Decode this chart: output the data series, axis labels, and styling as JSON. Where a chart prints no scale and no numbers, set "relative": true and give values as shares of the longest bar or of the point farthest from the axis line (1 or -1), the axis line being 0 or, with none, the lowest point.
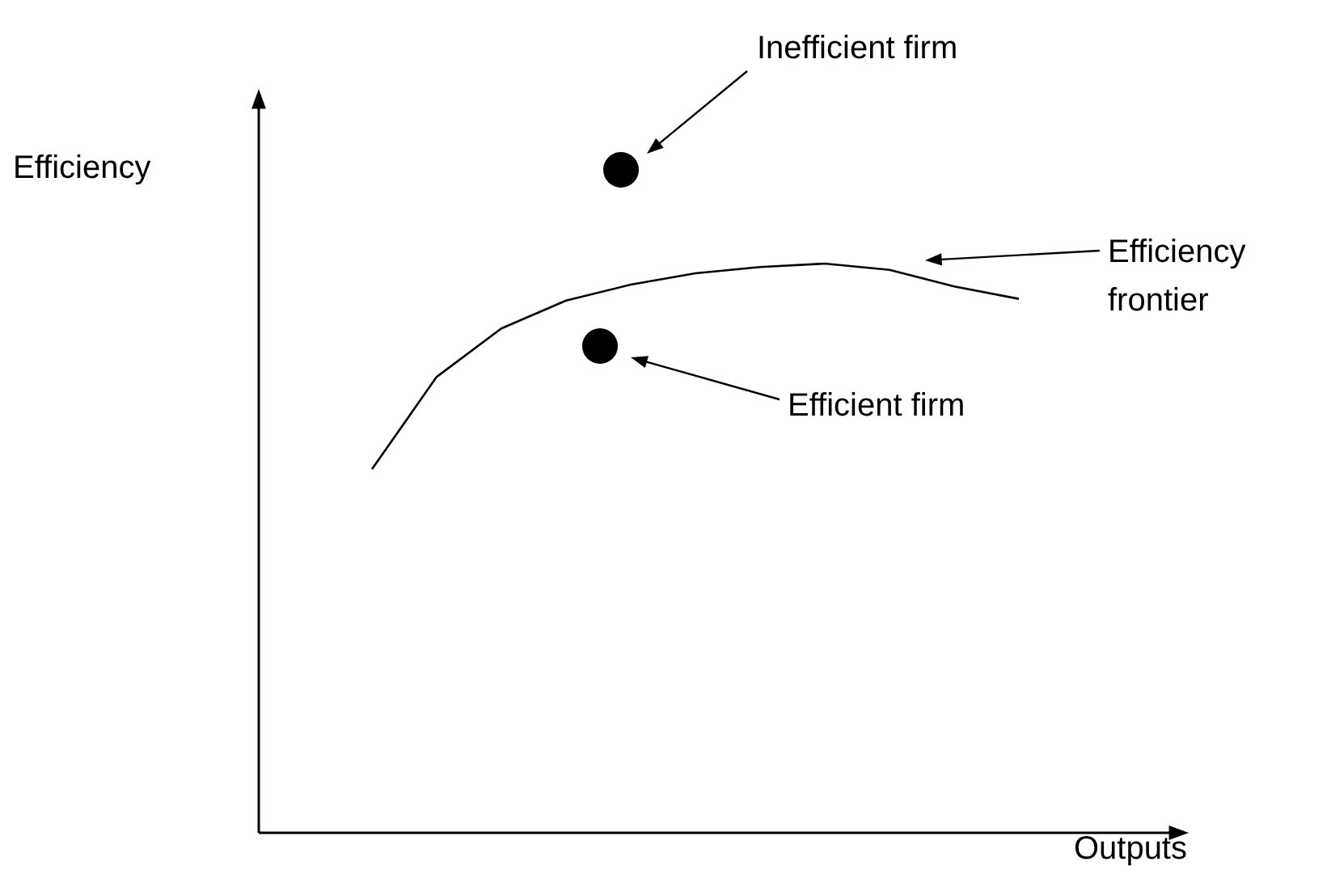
{
  "chart_data": {
    "type": "line",
    "relative": true,
    "xlabel": "Outputs",
    "categories": [
      null,
      null,
      null,
      null,
      null,
      null,
      null,
      null,
      null,
      null,
      null
    ],
    "series": [
      {
        "color": "#000000",
        "values": [
          0.639,
          0.801,
          0.886,
          0.935,
          0.963,
          0.983,
          0.994,
          1,
          0.989,
          0.96,
          0.938
        ]
      }
    ],
    "annotations": [
      "Inefficient firm",
      "Efficiency frontier",
      "Efficient firm",
      "Efficiency"
    ]
  }
}
